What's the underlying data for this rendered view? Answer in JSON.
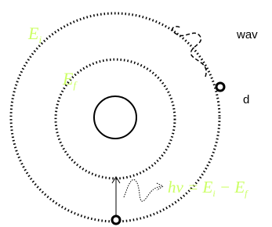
{
  "outer_label": {
    "main": "E",
    "sub": "i"
  },
  "inner_label": {
    "main": "E",
    "sub": "f"
  },
  "side_texts": [
    "wav",
    "d"
  ],
  "equation": {
    "parts": [
      "hν = E",
      "i",
      " − E",
      "f"
    ]
  }
}
